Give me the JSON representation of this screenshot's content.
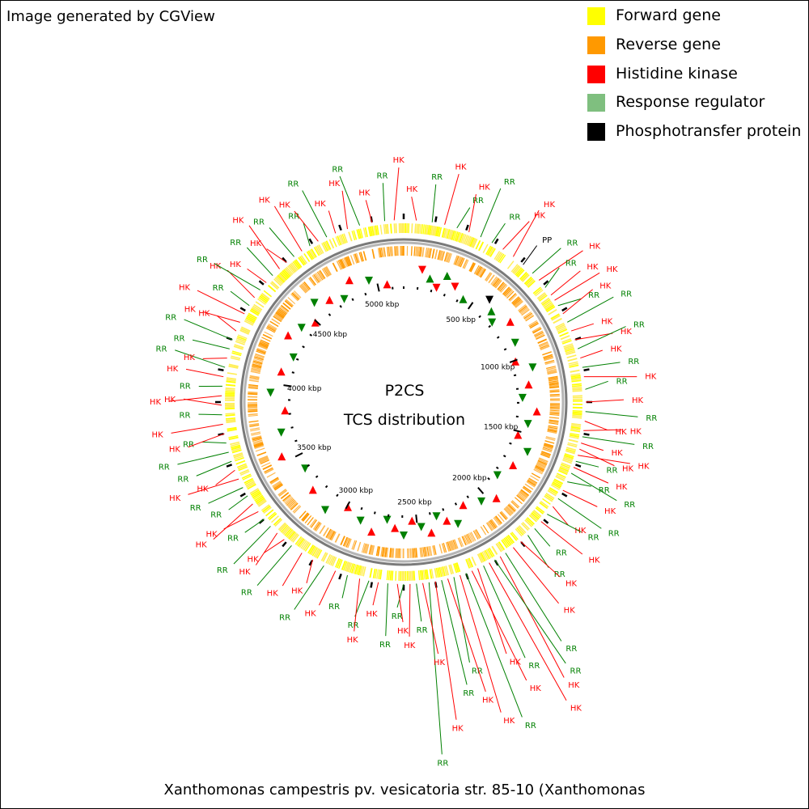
{
  "header": {
    "credit": "Image generated by CGView"
  },
  "legend": [
    {
      "label": "Forward gene",
      "color": "#ffff00"
    },
    {
      "label": "Reverse gene",
      "color": "#ff9900"
    },
    {
      "label": "Histidine kinase",
      "color": "#ff0000"
    },
    {
      "label": "Response regulator",
      "color": "#7fbf7f"
    },
    {
      "label": "Phosphotransfer protein",
      "color": "#000000"
    }
  ],
  "center": {
    "line1": "P2CS",
    "line2": "TCS distribution"
  },
  "genome": {
    "length_kbp": 5180,
    "ticks": [
      {
        "pos": 500,
        "label": "500 kbp"
      },
      {
        "pos": 1000,
        "label": "1000 kbp"
      },
      {
        "pos": 1500,
        "label": "1500 kbp"
      },
      {
        "pos": 2000,
        "label": "2000 kbp"
      },
      {
        "pos": 2500,
        "label": "2500 kbp"
      },
      {
        "pos": 3000,
        "label": "3000 kbp"
      },
      {
        "pos": 3500,
        "label": "3500 kbp"
      },
      {
        "pos": 4000,
        "label": "4000 kbp"
      },
      {
        "pos": 4500,
        "label": "4500 kbp"
      },
      {
        "pos": 5000,
        "label": "5000 kbp"
      }
    ]
  },
  "colors": {
    "forward": "#ffff00",
    "reverse": "#ff9900",
    "hk": "#ff0000",
    "rr": "#008000",
    "rr_line": "#008000",
    "pp": "#000000",
    "backbone": "#888888"
  },
  "features": [
    {
      "type": "HK",
      "deg": 4
    },
    {
      "type": "RR",
      "deg": 9
    },
    {
      "type": "HK",
      "deg": 13
    },
    {
      "type": "RR",
      "deg": 17
    },
    {
      "type": "HK",
      "deg": 21
    },
    {
      "type": "RR",
      "deg": 25
    },
    {
      "type": "RR",
      "deg": 29
    },
    {
      "type": "HK",
      "deg": 33
    },
    {
      "type": "HK",
      "deg": 37
    },
    {
      "type": "PP",
      "deg": 41
    },
    {
      "type": "RR",
      "deg": 45
    },
    {
      "type": "HK",
      "deg": 48
    },
    {
      "type": "RR",
      "deg": 51
    },
    {
      "type": "HK",
      "deg": 54
    },
    {
      "type": "HK",
      "deg": 56
    },
    {
      "type": "RR",
      "deg": 58
    },
    {
      "type": "HK",
      "deg": 61
    },
    {
      "type": "RR",
      "deg": 64
    },
    {
      "type": "HK",
      "deg": 67
    },
    {
      "type": "HK",
      "deg": 70
    },
    {
      "type": "RR",
      "deg": 73
    },
    {
      "type": "HK",
      "deg": 76
    },
    {
      "type": "RR",
      "deg": 79
    },
    {
      "type": "HK",
      "deg": 82
    },
    {
      "type": "RR",
      "deg": 86
    },
    {
      "type": "HK",
      "deg": 90
    },
    {
      "type": "RR",
      "deg": 93
    },
    {
      "type": "HK",
      "deg": 96
    },
    {
      "type": "HK",
      "deg": 99
    },
    {
      "type": "RR",
      "deg": 101
    },
    {
      "type": "HK",
      "deg": 103
    },
    {
      "type": "HK",
      "deg": 105
    },
    {
      "type": "HK",
      "deg": 107
    },
    {
      "type": "RR",
      "deg": 109
    },
    {
      "type": "HK",
      "deg": 111
    },
    {
      "type": "RR",
      "deg": 113
    },
    {
      "type": "RR",
      "deg": 116
    },
    {
      "type": "HK",
      "deg": 119
    },
    {
      "type": "RR",
      "deg": 122
    },
    {
      "type": "HK",
      "deg": 125
    },
    {
      "type": "RR",
      "deg": 128
    },
    {
      "type": "HK",
      "deg": 131
    },
    {
      "type": "RR",
      "deg": 134
    },
    {
      "type": "RR",
      "deg": 137
    },
    {
      "type": "HK",
      "deg": 140
    },
    {
      "type": "HK",
      "deg": 143
    },
    {
      "type": "RR",
      "deg": 146
    },
    {
      "type": "HK",
      "deg": 148
    },
    {
      "type": "RR",
      "deg": 150
    },
    {
      "type": "HK",
      "deg": 152
    },
    {
      "type": "RR",
      "deg": 154
    },
    {
      "type": "HK",
      "deg": 156
    },
    {
      "type": "HK",
      "deg": 158
    },
    {
      "type": "RR",
      "deg": 160
    },
    {
      "type": "HK",
      "deg": 162
    },
    {
      "type": "RR",
      "deg": 164
    },
    {
      "type": "HK",
      "deg": 166
    },
    {
      "type": "RR",
      "deg": 168
    },
    {
      "type": "HK",
      "deg": 170
    },
    {
      "type": "RR",
      "deg": 172
    },
    {
      "type": "HK",
      "deg": 174
    },
    {
      "type": "RR",
      "deg": 176
    },
    {
      "type": "HK",
      "deg": 178
    },
    {
      "type": "RR",
      "deg": 180
    },
    {
      "type": "HK",
      "deg": 182
    },
    {
      "type": "RR",
      "deg": 185
    },
    {
      "type": "HK",
      "deg": 188
    },
    {
      "type": "RR",
      "deg": 191
    },
    {
      "type": "HK",
      "deg": 194
    },
    {
      "type": "RR",
      "deg": 198
    },
    {
      "type": "HK",
      "deg": 202
    },
    {
      "type": "RR",
      "deg": 206
    },
    {
      "type": "HK",
      "deg": 210
    },
    {
      "type": "HK",
      "deg": 214
    },
    {
      "type": "RR",
      "deg": 218
    },
    {
      "type": "HK",
      "deg": 221
    },
    {
      "type": "HK",
      "deg": 224
    },
    {
      "type": "RR",
      "deg": 227
    },
    {
      "type": "RR",
      "deg": 230
    },
    {
      "type": "HK",
      "deg": 233
    },
    {
      "type": "HK",
      "deg": 236
    },
    {
      "type": "RR",
      "deg": 239
    },
    {
      "type": "RR",
      "deg": 242
    },
    {
      "type": "HK",
      "deg": 245
    },
    {
      "type": "HK",
      "deg": 248
    },
    {
      "type": "RR",
      "deg": 251
    },
    {
      "type": "RR",
      "deg": 254
    },
    {
      "type": "RR",
      "deg": 257
    },
    {
      "type": "HK",
      "deg": 260
    },
    {
      "type": "HK",
      "deg": 263
    },
    {
      "type": "RR",
      "deg": 266
    },
    {
      "type": "HK",
      "deg": 269
    },
    {
      "type": "HK",
      "deg": 272
    },
    {
      "type": "RR",
      "deg": 275
    },
    {
      "type": "HK",
      "deg": 278
    },
    {
      "type": "RR",
      "deg": 281
    },
    {
      "type": "HK",
      "deg": 284
    },
    {
      "type": "RR",
      "deg": 287
    },
    {
      "type": "RR",
      "deg": 290
    },
    {
      "type": "HK",
      "deg": 293
    },
    {
      "type": "HK",
      "deg": 296
    },
    {
      "type": "HK",
      "deg": 299
    },
    {
      "type": "RR",
      "deg": 302
    },
    {
      "type": "HK",
      "deg": 305
    },
    {
      "type": "RR",
      "deg": 308
    },
    {
      "type": "HK",
      "deg": 311
    },
    {
      "type": "RR",
      "deg": 314
    },
    {
      "type": "HK",
      "deg": 317
    },
    {
      "type": "HK",
      "deg": 320
    },
    {
      "type": "RR",
      "deg": 323
    },
    {
      "type": "HK",
      "deg": 326
    },
    {
      "type": "RR",
      "deg": 329
    },
    {
      "type": "HK",
      "deg": 332
    },
    {
      "type": "RR",
      "deg": 335
    },
    {
      "type": "HK",
      "deg": 338
    },
    {
      "type": "HK",
      "deg": 342
    },
    {
      "type": "RR",
      "deg": 346
    },
    {
      "type": "HK",
      "deg": 350
    },
    {
      "type": "RR",
      "deg": 354
    },
    {
      "type": "HK",
      "deg": 357
    }
  ],
  "inner_markers": [
    {
      "type": "HK",
      "deg": 8
    },
    {
      "type": "RR",
      "deg": 12
    },
    {
      "type": "HK",
      "deg": 16
    },
    {
      "type": "RR",
      "deg": 19
    },
    {
      "type": "HK",
      "deg": 24
    },
    {
      "type": "RR",
      "deg": 30
    },
    {
      "type": "PP",
      "deg": 40
    },
    {
      "type": "RR",
      "deg": 44
    },
    {
      "type": "RR",
      "deg": 48
    },
    {
      "type": "HK",
      "deg": 53
    },
    {
      "type": "RR",
      "deg": 62
    },
    {
      "type": "HK",
      "deg": 70
    },
    {
      "type": "RR",
      "deg": 75
    },
    {
      "type": "HK",
      "deg": 82
    },
    {
      "type": "RR",
      "deg": 88
    },
    {
      "type": "HK",
      "deg": 94
    },
    {
      "type": "RR",
      "deg": 100
    },
    {
      "type": "HK",
      "deg": 106
    },
    {
      "type": "RR",
      "deg": 112
    },
    {
      "type": "HK",
      "deg": 120
    },
    {
      "type": "RR",
      "deg": 128
    },
    {
      "type": "HK",
      "deg": 136
    },
    {
      "type": "RR",
      "deg": 142
    },
    {
      "type": "HK",
      "deg": 150
    },
    {
      "type": "RR",
      "deg": 156
    },
    {
      "type": "HK",
      "deg": 160
    },
    {
      "type": "RR",
      "deg": 164
    },
    {
      "type": "HK",
      "deg": 168
    },
    {
      "type": "RR",
      "deg": 172
    },
    {
      "type": "HK",
      "deg": 176
    },
    {
      "type": "RR",
      "deg": 180
    },
    {
      "type": "HK",
      "deg": 184
    },
    {
      "type": "RR",
      "deg": 188
    },
    {
      "type": "HK",
      "deg": 194
    },
    {
      "type": "RR",
      "deg": 200
    },
    {
      "type": "HK",
      "deg": 208
    },
    {
      "type": "RR",
      "deg": 216
    },
    {
      "type": "HK",
      "deg": 226
    },
    {
      "type": "RR",
      "deg": 236
    },
    {
      "type": "HK",
      "deg": 246
    },
    {
      "type": "RR",
      "deg": 256
    },
    {
      "type": "HK",
      "deg": 266
    },
    {
      "type": "RR",
      "deg": 274
    },
    {
      "type": "HK",
      "deg": 284
    },
    {
      "type": "RR",
      "deg": 292
    },
    {
      "type": "HK",
      "deg": 300
    },
    {
      "type": "RR",
      "deg": 306
    },
    {
      "type": "HK",
      "deg": 312
    },
    {
      "type": "RR",
      "deg": 318
    },
    {
      "type": "HK",
      "deg": 324
    },
    {
      "type": "RR",
      "deg": 330
    },
    {
      "type": "HK",
      "deg": 336
    },
    {
      "type": "RR",
      "deg": 344
    },
    {
      "type": "HK",
      "deg": 352
    }
  ],
  "footer": {
    "title": "Xanthomonas campestris pv. vesicatoria str. 85-10 (Xanthomonas"
  }
}
